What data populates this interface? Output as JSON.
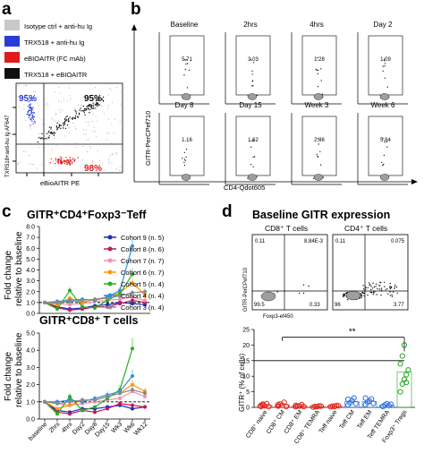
{
  "panel_letters": {
    "a": "a",
    "b": "b",
    "c": "c",
    "d": "d"
  },
  "panel_a": {
    "legend": [
      {
        "label": "Isotype ctrl + anti-hu Ig",
        "color": "#c8c8c8"
      },
      {
        "label": "TRX518 + anti-hu Ig",
        "color": "#2a3cd6"
      },
      {
        "label": "eBIOAITR (FC mAb)",
        "color": "#e01a1a"
      },
      {
        "label": "TRX518 + eBIOAITR",
        "color": "#111111"
      }
    ],
    "ylabel": "TXR518+anti-hu Ig AF647",
    "xlabel": "eBioAITR PE",
    "pct_blue": "95%",
    "pct_black": "95%",
    "pct_red": "98%",
    "colors": {
      "blue": "#2a3cd6",
      "red": "#e01a1a",
      "black": "#111111"
    }
  },
  "panel_b": {
    "ylabel": "GITR-PerCPef710",
    "xlabel": "CD4-Qdot605",
    "plots": [
      {
        "title": "Baseline",
        "value": "5.71"
      },
      {
        "title": "2hrs",
        "value": "3.03"
      },
      {
        "title": "4hrs",
        "value": "1.28"
      },
      {
        "title": "Day 2",
        "value": "1.09"
      },
      {
        "title": "Day 8",
        "value": "1.16"
      },
      {
        "title": "Day 15",
        "value": "1.62"
      },
      {
        "title": "Week 3",
        "value": "2.36"
      },
      {
        "title": "Week 6",
        "value": "5.84"
      }
    ]
  },
  "panel_c": {
    "top_title": "GITR⁺CD4⁺Foxp3⁻Teff",
    "bottom_title": "GITR⁺CD8⁺ T cells",
    "ylabel_line1": "Fold change",
    "ylabel_line2": "relative to baseline",
    "y_ticks_top": [
      "8.0",
      "7.0",
      "6.0",
      "5.0",
      "4.0",
      "3.0",
      "2.0",
      "1.0",
      "0.0"
    ],
    "y_ticks_bottom": [
      "5.0",
      "4.0",
      "3.0",
      "2.0",
      "1.0",
      "0.0"
    ],
    "x_ticks": [
      "baseline",
      "2hrs",
      "4hrs",
      "Day2",
      "Day8",
      "Day15",
      "Wk3",
      "Wk6",
      "Wk12"
    ],
    "legend": [
      {
        "label": "Cohort 9 (n. 5)",
        "color": "#1d2db5"
      },
      {
        "label": "Cohort 8 (n. 6)",
        "color": "#c2185b"
      },
      {
        "label": "Cohort 7 (n. 7)",
        "color": "#f48fb1"
      },
      {
        "label": "Cohort 6 (n. 7)",
        "color": "#ff9800"
      },
      {
        "label": "Cohort 5 (n. 4)",
        "color": "#27b01e"
      },
      {
        "label": "Cohort 4 (n. 4)",
        "color": "#2d8fe0"
      },
      {
        "label": "Cohort 3 (n. 4)",
        "color": "#8a8a8a"
      }
    ]
  },
  "chart_data": [
    {
      "type": "line",
      "title": "GITR⁺CD4⁺Foxp3⁻Teff",
      "ylabel": "Fold change relative to baseline",
      "categories": [
        "baseline",
        "2hrs",
        "4hrs",
        "Day2",
        "Day8",
        "Day15",
        "Wk3",
        "Wk6",
        "Wk12"
      ],
      "ylim": [
        0,
        8
      ],
      "series": [
        {
          "name": "Cohort 9 (n. 5)",
          "values": [
            1.0,
            0.6,
            0.4,
            0.5,
            0.7,
            0.8,
            1.0,
            0.9,
            0.8
          ]
        },
        {
          "name": "Cohort 8 (n. 6)",
          "values": [
            1.0,
            0.5,
            0.3,
            0.4,
            0.6,
            0.6,
            0.9,
            1.2,
            1.0
          ]
        },
        {
          "name": "Cohort 7 (n. 7)",
          "values": [
            1.0,
            0.9,
            0.8,
            0.9,
            1.1,
            1.2,
            1.3,
            1.5,
            1.2
          ]
        },
        {
          "name": "Cohort 6 (n. 7)",
          "values": [
            1.0,
            0.8,
            1.4,
            1.0,
            1.3,
            1.5,
            1.9,
            2.8,
            1.7
          ]
        },
        {
          "name": "Cohort 5 (n. 4)",
          "values": [
            1.0,
            0.4,
            2.1,
            0.6,
            0.5,
            1.2,
            1.8,
            3.6,
            null
          ]
        },
        {
          "name": "Cohort 4 (n. 4)",
          "values": [
            1.0,
            1.1,
            1.2,
            1.3,
            1.2,
            1.5,
            2.1,
            6.2,
            null
          ]
        },
        {
          "name": "Cohort 3 (n. 4)",
          "values": [
            1.0,
            1.0,
            1.1,
            1.2,
            1.3,
            1.4,
            1.6,
            1.9,
            2.0
          ]
        }
      ]
    },
    {
      "type": "line",
      "title": "GITR⁺CD8⁺ T cells",
      "ylabel": "Fold change relative to baseline",
      "categories": [
        "baseline",
        "2hrs",
        "4hrs",
        "Day2",
        "Day8",
        "Day15",
        "Wk3",
        "Wk6",
        "Wk12"
      ],
      "ylim": [
        0,
        5
      ],
      "series": [
        {
          "name": "Cohort 9 (n. 5)",
          "values": [
            1.0,
            0.5,
            0.4,
            0.6,
            0.6,
            0.7,
            0.8,
            0.6,
            0.7
          ]
        },
        {
          "name": "Cohort 8 (n. 6)",
          "values": [
            1.0,
            0.4,
            0.3,
            0.5,
            0.4,
            0.6,
            0.9,
            0.8,
            0.7
          ]
        },
        {
          "name": "Cohort 7 (n. 7)",
          "values": [
            1.0,
            0.9,
            0.8,
            0.9,
            1.0,
            1.1,
            1.2,
            1.6,
            1.3
          ]
        },
        {
          "name": "Cohort 6 (n. 7)",
          "values": [
            1.0,
            0.6,
            0.8,
            1.1,
            1.1,
            1.3,
            1.5,
            2.0,
            1.6
          ]
        },
        {
          "name": "Cohort 5 (n. 4)",
          "values": [
            1.0,
            0.3,
            1.3,
            0.5,
            0.7,
            1.2,
            1.7,
            4.1,
            null
          ]
        },
        {
          "name": "Cohort 4 (n. 4)",
          "values": [
            1.0,
            1.0,
            1.1,
            1.0,
            1.2,
            1.4,
            1.6,
            2.5,
            null
          ]
        },
        {
          "name": "Cohort 3 (n. 4)",
          "values": [
            1.0,
            0.9,
            1.0,
            1.1,
            1.1,
            1.3,
            1.5,
            1.7,
            1.5
          ]
        }
      ]
    },
    {
      "type": "scatter",
      "title": "",
      "ylabel": "GITR⁺ (% of cells)",
      "categories": [
        "CD8⁺ naive",
        "CD8⁺ CM",
        "CD8⁺ EM",
        "CD8⁺ TEMRA",
        "Teff naive",
        "Teff CM",
        "Teff EM",
        "Teff TEMRA",
        "Foxp3⁺ Tregs"
      ],
      "ylim": [
        0,
        25
      ],
      "series": [
        {
          "name": "CD8⁺ naive",
          "values": [
            0.3,
            0.8,
            0.5,
            1.2,
            0.2,
            0.6,
            1.0
          ]
        },
        {
          "name": "CD8⁺ CM",
          "values": [
            0.4,
            1.1,
            0.7,
            1.6,
            0.3,
            0.9
          ]
        },
        {
          "name": "CD8⁺ EM",
          "values": [
            0.2,
            0.5,
            0.4,
            0.9,
            0.3,
            0.6
          ]
        },
        {
          "name": "CD8⁺ TEMRA",
          "values": [
            0.1,
            0.3,
            0.2,
            0.5,
            0.4
          ]
        },
        {
          "name": "Teff naive",
          "values": [
            0.2,
            0.4,
            0.3,
            0.6,
            0.5
          ]
        },
        {
          "name": "Teff CM",
          "values": [
            0.8,
            1.5,
            2.2,
            3.0,
            1.2,
            2.6
          ]
        },
        {
          "name": "Teff EM",
          "values": [
            0.9,
            1.6,
            2.0,
            2.7,
            1.3,
            3.0
          ]
        },
        {
          "name": "Teff TEMRA",
          "values": [
            0.3,
            0.8,
            1.2,
            0.6,
            1.0
          ]
        },
        {
          "name": "Foxp3⁺ Tregs",
          "values": [
            5.0,
            7.5,
            9.0,
            10.5,
            12.0,
            14.0,
            16.5,
            20.0,
            8.0
          ]
        }
      ]
    }
  ],
  "panel_d": {
    "title": "Baseline GITR expression",
    "sub_cd8": "CD8⁺ T cells",
    "sub_cd4": "CD4⁺ T cells",
    "ylabel_flow": "GITR-PerCPef710",
    "xlabel_flow": "Foxp3-ef450",
    "cd8_quads": {
      "ul": "0.11",
      "ur": "8.84E-3",
      "ll": "99.5",
      "lr": "0.33"
    },
    "cd4_quads": {
      "ul": "0.11",
      "ur": "0.075",
      "ll": "96",
      "lr": "3.77"
    },
    "ylabel": "GITR⁺ (% of cells)",
    "y_ticks": [
      "25",
      "20",
      "15",
      "10",
      "5",
      "0"
    ],
    "significance": "**",
    "categories": [
      "CD8⁺ naive",
      "CD8⁺ CM",
      "CD8⁺ EM",
      "CD8⁺ TEMRA",
      "Teff naive",
      "Teff CM",
      "Teff EM",
      "Teff TEMRA",
      "Foxp3⁺ Tregs"
    ],
    "cat_colors": [
      "#e0241b",
      "#e0241b",
      "#e0241b",
      "#e0241b",
      "#e0241b",
      "#2e6fe0",
      "#2e6fe0",
      "#2e6fe0",
      "#27a522"
    ]
  }
}
